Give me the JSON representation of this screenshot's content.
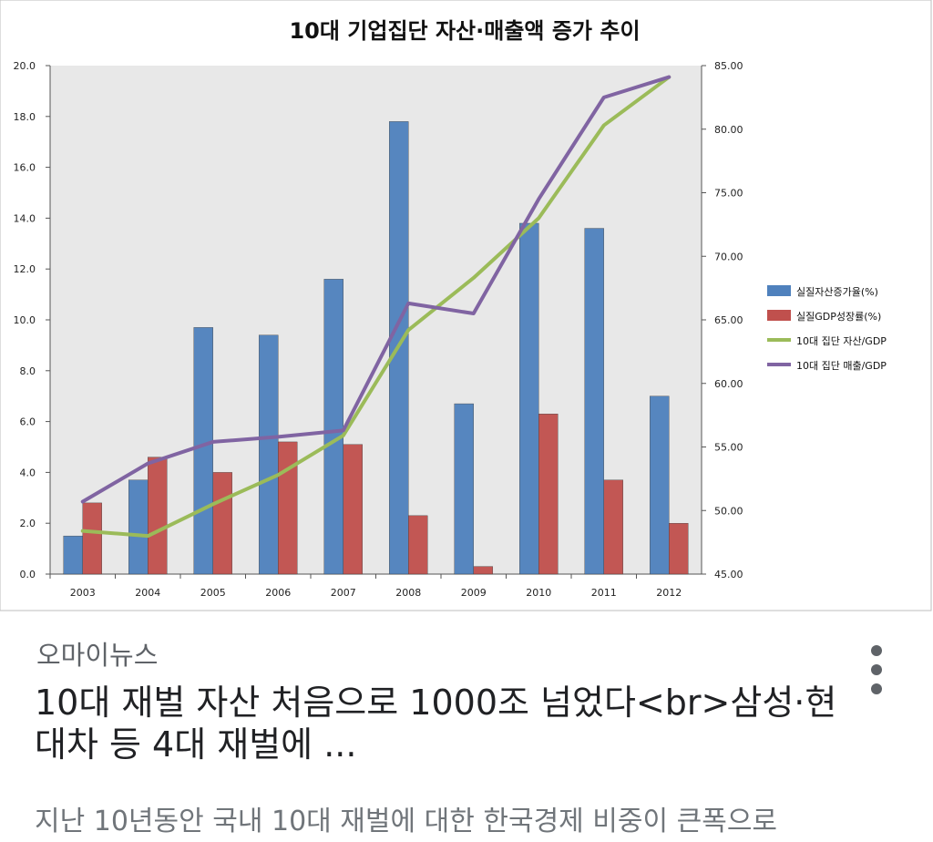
{
  "card": {
    "source": "오마이뉴스",
    "headline": "10대 재벌 자산 처음으로 1000조 넘었다<br>삼성·현대차 등 4대 재벌에 ...",
    "snippet": "지난 10년동안 국내 10대 재벌에 대한 한국경제 비중이 큰폭으로",
    "more_icon": "more-vert-icon"
  },
  "chart_data": {
    "type": "bar",
    "title": "10대 기업집단 자산·매출액 증가 추이",
    "categories": [
      "2003",
      "2004",
      "2005",
      "2006",
      "2007",
      "2008",
      "2009",
      "2010",
      "2011",
      "2012"
    ],
    "y_left": {
      "ylim": [
        0,
        20
      ],
      "ticks": [
        "0.0",
        "2.0",
        "4.0",
        "6.0",
        "8.0",
        "10.0",
        "12.0",
        "14.0",
        "16.0",
        "18.0",
        "20.0"
      ]
    },
    "y_right": {
      "ylim": [
        45,
        85
      ],
      "ticks": [
        "45.00",
        "50.00",
        "55.00",
        "60.00",
        "65.00",
        "70.00",
        "75.00",
        "80.00",
        "85.00"
      ]
    },
    "series": [
      {
        "name": "실질자산증가율(%)",
        "type": "bar",
        "axis": "left",
        "color": "#4f81bd",
        "values": [
          1.5,
          3.7,
          9.7,
          9.4,
          11.6,
          17.8,
          6.7,
          13.8,
          13.6,
          7.0
        ]
      },
      {
        "name": "실질GDP성장률(%)",
        "type": "bar",
        "axis": "left",
        "color": "#c0504d",
        "values": [
          2.8,
          4.6,
          4.0,
          5.2,
          5.1,
          2.3,
          0.3,
          6.3,
          3.7,
          2.0
        ]
      },
      {
        "name": "10대 집단 자산/GDP",
        "type": "line",
        "axis": "right",
        "color": "#9bbb59",
        "values": [
          48.4,
          48.0,
          50.5,
          52.8,
          55.9,
          64.2,
          68.3,
          73.0,
          80.3,
          84.1
        ]
      },
      {
        "name": "10대 집단 매출/GDP",
        "type": "line",
        "axis": "right",
        "color": "#8064a2",
        "values": [
          50.7,
          53.7,
          55.4,
          55.8,
          56.3,
          66.3,
          65.5,
          74.5,
          82.5,
          84.1
        ]
      }
    ],
    "grid": false,
    "plot_background": "#e8e8e8",
    "legend_position": "right"
  }
}
